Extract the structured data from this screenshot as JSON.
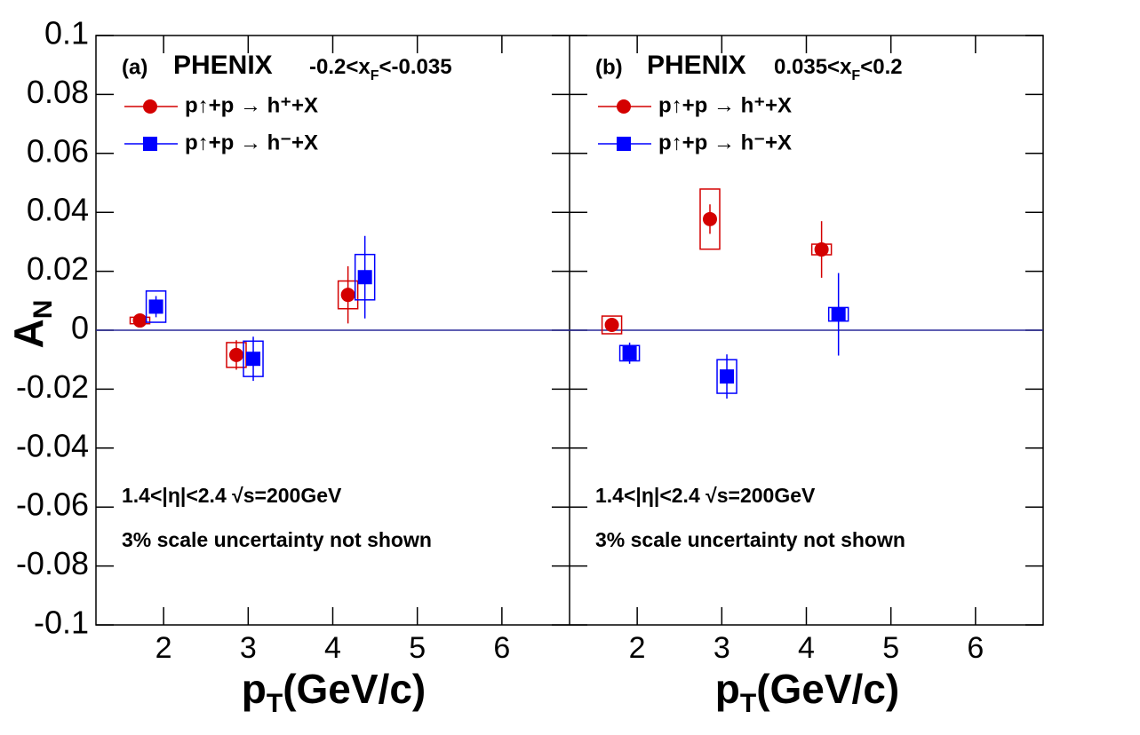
{
  "chart_data": [
    {
      "type": "scatter",
      "title": "(a)",
      "experiment": "PHENIX",
      "kinematics": {
        "pre": "-0.2<x",
        "sub": "F",
        "post": "<-0.035"
      },
      "annotations": [
        "1.4<|η|<2.4   √s=200GeV",
        "3% scale uncertainty not shown"
      ],
      "xlabel": {
        "main": "p",
        "sub": "T",
        "post": "(GeV/c)"
      },
      "ylabel": {
        "main": "A",
        "sub": "N"
      },
      "xlim": [
        1.2,
        6.8
      ],
      "xticks": [
        2,
        3,
        4,
        5,
        6
      ],
      "ylim": [
        -0.1,
        0.1
      ],
      "yticks": [
        -0.1,
        -0.08,
        -0.06,
        -0.04,
        -0.02,
        0,
        0.02,
        0.04,
        0.06,
        0.08,
        0.1
      ],
      "series": [
        {
          "name": "p↑+p → h⁺+X",
          "color": "#d40000",
          "marker": "circle",
          "x": [
            1.72,
            2.86,
            4.18
          ],
          "values": [
            0.0033,
            -0.0084,
            0.012
          ],
          "errors": [
            0.0015,
            0.005,
            0.0097
          ],
          "sys": [
            0.0011,
            0.0042,
            0.0047
          ]
        },
        {
          "name": "p↑+p → h⁻+X",
          "color": "#0000ff",
          "marker": "square",
          "x": [
            1.91,
            3.06,
            4.38
          ],
          "values": [
            0.008,
            -0.0097,
            0.018
          ],
          "errors": [
            0.0036,
            0.0075,
            0.014
          ],
          "sys": [
            0.0053,
            0.006,
            0.0077
          ]
        }
      ]
    },
    {
      "type": "scatter",
      "title": "(b)",
      "experiment": "PHENIX",
      "kinematics": {
        "pre": "0.035<x",
        "sub": "F",
        "post": "<0.2"
      },
      "annotations": [
        "1.4<|η|<2.4   √s=200GeV",
        "3% scale uncertainty not shown"
      ],
      "xlabel": {
        "main": "p",
        "sub": "T",
        "post": "(GeV/c)"
      },
      "xlim": [
        1.2,
        6.8
      ],
      "xticks": [
        2,
        3,
        4,
        5,
        6
      ],
      "ylim": [
        -0.1,
        0.1
      ],
      "yticks": [
        -0.1,
        -0.08,
        -0.06,
        -0.04,
        -0.02,
        0,
        0.02,
        0.04,
        0.06,
        0.08,
        0.1
      ],
      "series": [
        {
          "name": "p↑+p → h⁺+X",
          "color": "#d40000",
          "marker": "circle",
          "x": [
            1.7,
            2.86,
            4.18
          ],
          "values": [
            0.0018,
            0.0377,
            0.0274
          ],
          "errors": [
            0.0015,
            0.005,
            0.0096
          ],
          "sys": [
            0.003,
            0.0102,
            0.0018
          ]
        },
        {
          "name": "p↑+p → h⁻+X",
          "color": "#0000ff",
          "marker": "square",
          "x": [
            1.91,
            3.06,
            4.38
          ],
          "values": [
            -0.0078,
            -0.0157,
            0.0054
          ],
          "errors": [
            0.0036,
            0.0075,
            0.014
          ],
          "sys": [
            0.0026,
            0.0057,
            0.0023
          ]
        }
      ]
    }
  ]
}
